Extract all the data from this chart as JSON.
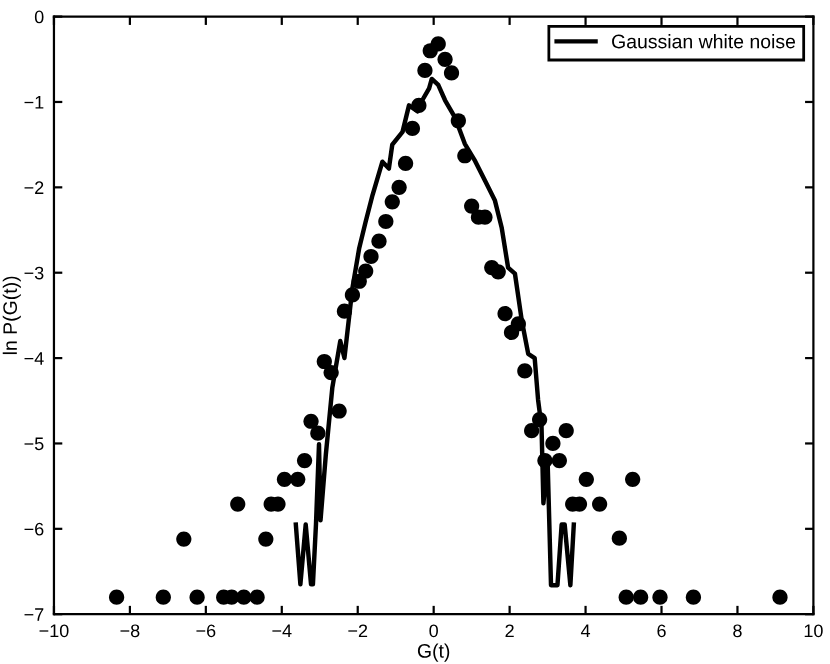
{
  "chart_data": {
    "type": "scatter",
    "xlabel": "G(t)",
    "ylabel": "ln P(G(t))",
    "xlim": [
      -10,
      10
    ],
    "ylim": [
      -7,
      0
    ],
    "xticks": [
      -10,
      -8,
      -6,
      -4,
      -2,
      0,
      2,
      4,
      6,
      8,
      10
    ],
    "yticks": [
      -7,
      -6,
      -5,
      -4,
      -3,
      -2,
      -1,
      0
    ],
    "grid": false,
    "legend": "top right",
    "series": [
      {
        "marker": "circle",
        "color": "#000000",
        "x": [
          -8.35,
          -7.12,
          -6.58,
          -6.23,
          -5.53,
          -5.32,
          -5.16,
          -5.0,
          -4.65,
          -4.42,
          -4.28,
          -4.1,
          -3.93,
          -3.58,
          -3.4,
          -3.23,
          -3.05,
          -2.88,
          -2.7,
          -2.49,
          -2.35,
          -2.14,
          -1.96,
          -1.79,
          -1.65,
          -1.44,
          -1.26,
          -1.09,
          -0.91,
          -0.74,
          -0.56,
          -0.39,
          -0.23,
          -0.09,
          0.12,
          0.3,
          0.47,
          0.65,
          0.82,
          1.0,
          1.18,
          1.35,
          1.53,
          1.7,
          1.88,
          2.05,
          2.23,
          2.4,
          2.58,
          2.79,
          2.93,
          3.14,
          3.31,
          3.49,
          3.66,
          3.84,
          4.02,
          4.37,
          4.89,
          5.07,
          5.24,
          5.45,
          5.96,
          6.84,
          9.12
        ],
        "values": [
          -6.8,
          -6.8,
          -6.12,
          -6.8,
          -6.8,
          -6.8,
          -5.71,
          -6.8,
          -6.8,
          -6.12,
          -5.71,
          -5.71,
          -5.42,
          -5.42,
          -5.2,
          -4.74,
          -4.88,
          -4.04,
          -4.17,
          -4.62,
          -3.45,
          -3.26,
          -3.1,
          -2.98,
          -2.81,
          -2.63,
          -2.4,
          -2.17,
          -2.0,
          -1.72,
          -1.31,
          -1.04,
          -0.63,
          -0.4,
          -0.32,
          -0.5,
          -0.66,
          -1.22,
          -1.63,
          -2.22,
          -2.35,
          -2.35,
          -2.94,
          -2.99,
          -3.48,
          -3.7,
          -3.6,
          -4.15,
          -4.85,
          -4.72,
          -5.2,
          -5.0,
          -5.2,
          -4.85,
          -5.71,
          -5.71,
          -5.42,
          -5.71,
          -6.11,
          -6.8,
          -5.42,
          -6.8,
          -6.8,
          -6.8,
          -6.8
        ]
      },
      {
        "type": "line",
        "name": "Gaussian white noise",
        "color": "#000000",
        "marker": "none",
        "line_style": "solid",
        "x": [
          -3.63,
          -3.51,
          -3.37,
          -3.23,
          -3.18,
          -3.1,
          -3.02,
          -2.98,
          -2.84,
          -2.67,
          -2.46,
          -2.35,
          -2.14,
          -1.96,
          -1.79,
          -1.61,
          -1.35,
          -1.18,
          -1.09,
          -0.82,
          -0.65,
          -0.42,
          -0.3,
          -0.12,
          -0.05,
          0.12,
          0.3,
          0.56,
          0.82,
          1.09,
          1.35,
          1.61,
          1.79,
          1.96,
          2.14,
          2.32,
          2.49,
          2.66,
          2.75,
          2.84,
          2.89,
          3.0,
          3.09,
          3.26,
          3.37,
          3.45,
          3.6,
          3.69
        ],
        "values": [
          -5.95,
          -6.65,
          -5.95,
          -6.65,
          -6.65,
          -5.95,
          -5.01,
          -5.9,
          -5.13,
          -4.35,
          -3.8,
          -4.0,
          -3.18,
          -2.71,
          -2.4,
          -2.09,
          -1.7,
          -1.78,
          -1.5,
          -1.35,
          -1.04,
          -1.11,
          -0.98,
          -0.84,
          -0.73,
          -0.8,
          -0.98,
          -1.18,
          -1.49,
          -1.69,
          -1.92,
          -2.15,
          -2.47,
          -2.94,
          -3.01,
          -3.56,
          -3.95,
          -4.0,
          -4.49,
          -4.8,
          -5.7,
          -5.2,
          -6.66,
          -6.66,
          -5.95,
          -5.95,
          -6.66,
          -5.95
        ]
      }
    ]
  }
}
